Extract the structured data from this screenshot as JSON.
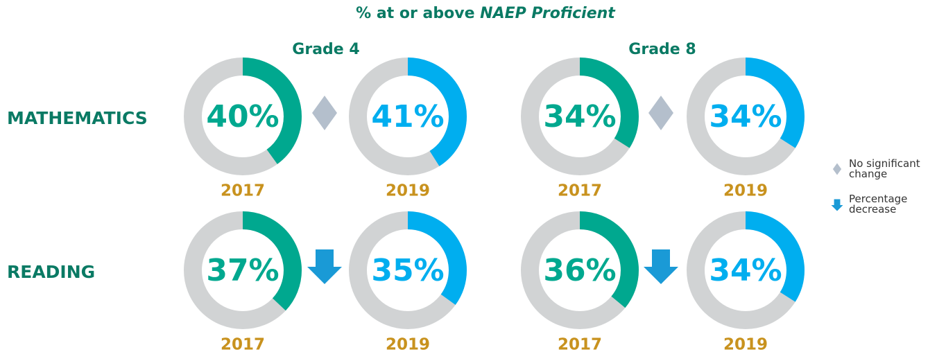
{
  "title": {
    "text": "% at or above ",
    "emphasis": "NAEP Proficient"
  },
  "grades": [
    "Grade 4",
    "Grade  8"
  ],
  "track_color": "#d1d3d4",
  "subjects": [
    {
      "name": "MATHEMATICS",
      "panels": [
        {
          "change": "no_change",
          "donuts": [
            {
              "year": "2017",
              "value": 40,
              "value_label": "40%",
              "color": "#00a88f"
            },
            {
              "year": "2019",
              "value": 41,
              "value_label": "41%",
              "color": "#00aeef"
            }
          ]
        },
        {
          "change": "no_change",
          "donuts": [
            {
              "year": "2017",
              "value": 34,
              "value_label": "34%",
              "color": "#00a88f"
            },
            {
              "year": "2019",
              "value": 34,
              "value_label": "34%",
              "color": "#00aeef"
            }
          ]
        }
      ]
    },
    {
      "name": "READING",
      "panels": [
        {
          "change": "decrease",
          "donuts": [
            {
              "year": "2017",
              "value": 37,
              "value_label": "37%",
              "color": "#00a88f"
            },
            {
              "year": "2019",
              "value": 35,
              "value_label": "35%",
              "color": "#00aeef"
            }
          ]
        },
        {
          "change": "decrease",
          "donuts": [
            {
              "year": "2017",
              "value": 36,
              "value_label": "36%",
              "color": "#00a88f"
            },
            {
              "year": "2019",
              "value": 34,
              "value_label": "34%",
              "color": "#00aeef"
            }
          ]
        }
      ]
    }
  ],
  "legend": [
    {
      "key": "no_change",
      "label": "No significant change"
    },
    {
      "key": "decrease",
      "label": "Percentage decrease"
    }
  ]
}
